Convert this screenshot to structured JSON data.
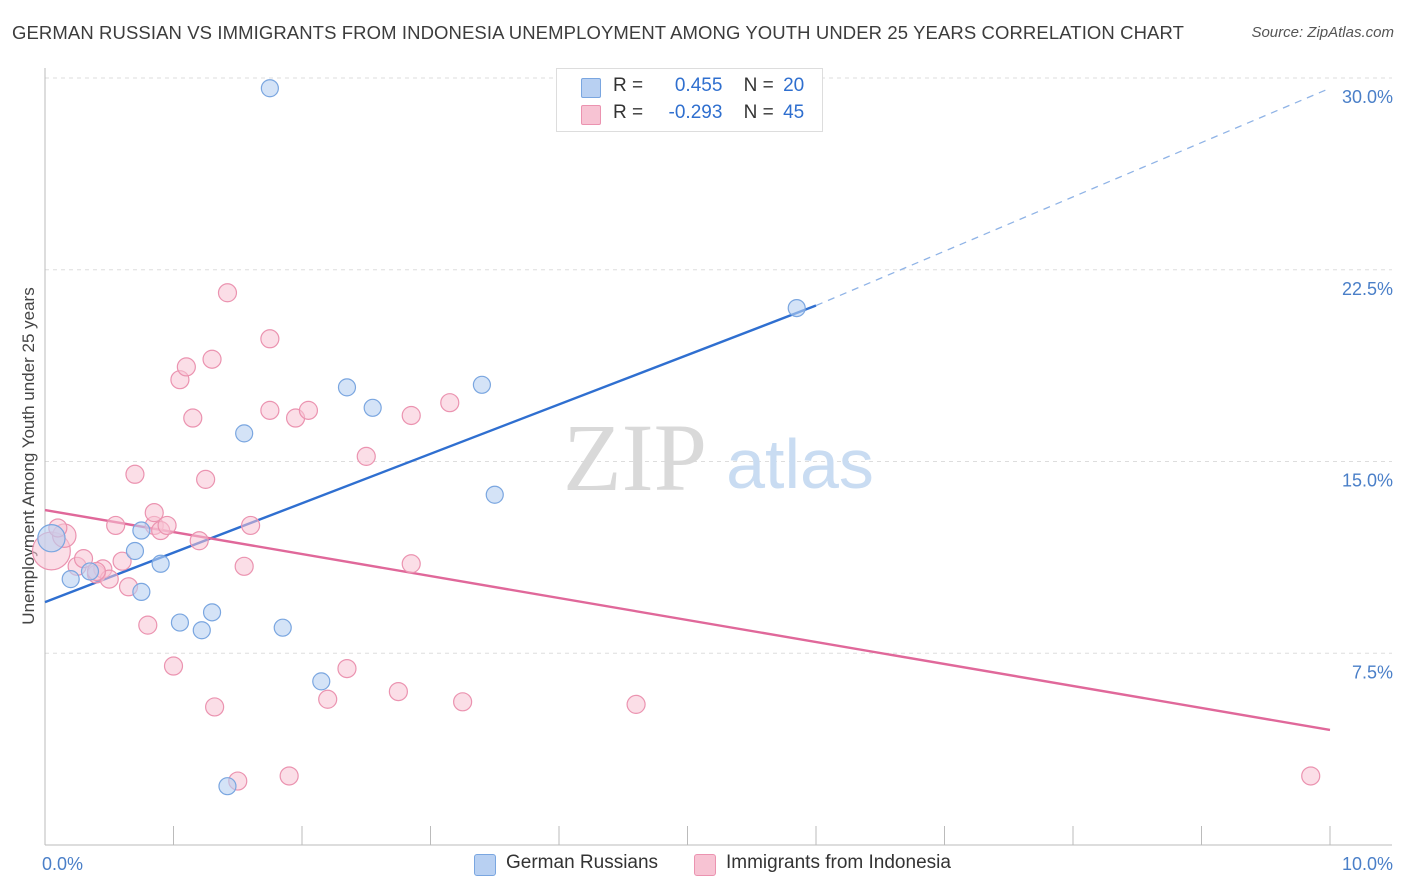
{
  "title": "GERMAN RUSSIAN VS IMMIGRANTS FROM INDONESIA UNEMPLOYMENT AMONG YOUTH UNDER 25 YEARS CORRELATION CHART",
  "source": "Source: ZipAtlas.com",
  "watermark": {
    "zip": "ZIP",
    "atlas": "atlas"
  },
  "colors": {
    "blue_fill": "#b8d0f2",
    "blue_stroke": "#7aa6e0",
    "blue_line": "#2f6fd0",
    "pink_fill": "#f7c3d3",
    "pink_stroke": "#eb93b0",
    "pink_line": "#e0689a",
    "tick_label": "#4a7fc8",
    "grid": "#dddddd"
  },
  "legend": {
    "rows": [
      {
        "r_label": "R =",
        "r_value": "0.455",
        "n_label": "N =",
        "n_value": "20",
        "color": "#b8d0f2",
        "border": "#7aa6e0"
      },
      {
        "r_label": "R =",
        "r_value": "-0.293",
        "n_label": "N =",
        "n_value": "45",
        "color": "#f7c3d3",
        "border": "#eb93b0"
      }
    ]
  },
  "bottom_legend": [
    {
      "label": "German Russians",
      "color": "#b8d0f2",
      "border": "#7aa6e0"
    },
    {
      "label": "Immigrants from Indonesia",
      "color": "#f7c3d3",
      "border": "#eb93b0"
    }
  ],
  "chart_data": {
    "type": "scatter",
    "title": "GERMAN RUSSIAN VS IMMIGRANTS FROM INDONESIA UNEMPLOYMENT AMONG YOUTH UNDER 25 YEARS CORRELATION CHART",
    "xlabel": "",
    "ylabel": "Unemployment Among Youth under 25 years",
    "xlim": [
      0,
      10
    ],
    "ylim": [
      0,
      30
    ],
    "x_tick_labels": [
      {
        "value": 0,
        "label": "0.0%"
      },
      {
        "value": 10,
        "label": "10.0%"
      }
    ],
    "x_minor_ticks": [
      1,
      2,
      3,
      4,
      5,
      6,
      7,
      8,
      9,
      10
    ],
    "y_ticks": [
      {
        "value": 7.5,
        "label": "7.5%"
      },
      {
        "value": 15,
        "label": "15.0%"
      },
      {
        "value": 22.5,
        "label": "22.5%"
      },
      {
        "value": 30,
        "label": "30.0%"
      }
    ],
    "series": [
      {
        "name": "German Russians",
        "r": 0.455,
        "n": 20,
        "trend": {
          "x0": 0,
          "y0": 9.5,
          "x1": 6.0,
          "y1": 21.1,
          "dash_to_x": 10,
          "dash_to_y": 29.6
        },
        "points": [
          {
            "x": 1.75,
            "y": 29.6,
            "s": 1
          },
          {
            "x": 0.05,
            "y": 12.0,
            "s": 1.6
          },
          {
            "x": 0.2,
            "y": 10.4,
            "s": 1
          },
          {
            "x": 0.35,
            "y": 10.7,
            "s": 1
          },
          {
            "x": 0.7,
            "y": 11.5,
            "s": 1
          },
          {
            "x": 0.75,
            "y": 9.9,
            "s": 1
          },
          {
            "x": 0.75,
            "y": 12.3,
            "s": 1
          },
          {
            "x": 0.9,
            "y": 11.0,
            "s": 1
          },
          {
            "x": 1.05,
            "y": 8.7,
            "s": 1
          },
          {
            "x": 1.22,
            "y": 8.4,
            "s": 1
          },
          {
            "x": 1.3,
            "y": 9.1,
            "s": 1
          },
          {
            "x": 1.55,
            "y": 16.1,
            "s": 1
          },
          {
            "x": 1.85,
            "y": 8.5,
            "s": 1
          },
          {
            "x": 2.35,
            "y": 17.9,
            "s": 1
          },
          {
            "x": 2.55,
            "y": 17.1,
            "s": 1
          },
          {
            "x": 2.15,
            "y": 6.4,
            "s": 1
          },
          {
            "x": 1.42,
            "y": 2.3,
            "s": 1
          },
          {
            "x": 3.4,
            "y": 18.0,
            "s": 1
          },
          {
            "x": 3.5,
            "y": 13.7,
            "s": 1
          },
          {
            "x": 5.85,
            "y": 21.0,
            "s": 1
          }
        ]
      },
      {
        "name": "Immigrants from Indonesia",
        "r": -0.293,
        "n": 45,
        "trend": {
          "x0": 0,
          "y0": 13.1,
          "x1": 10,
          "y1": 4.5
        },
        "points": [
          {
            "x": 0.05,
            "y": 11.5,
            "s": 2.1
          },
          {
            "x": 0.15,
            "y": 12.1,
            "s": 1.3
          },
          {
            "x": 0.25,
            "y": 10.9,
            "s": 1
          },
          {
            "x": 0.3,
            "y": 11.2,
            "s": 1
          },
          {
            "x": 0.4,
            "y": 10.6,
            "s": 1
          },
          {
            "x": 0.45,
            "y": 10.8,
            "s": 1
          },
          {
            "x": 0.5,
            "y": 10.4,
            "s": 1
          },
          {
            "x": 0.55,
            "y": 12.5,
            "s": 1
          },
          {
            "x": 0.6,
            "y": 11.1,
            "s": 1
          },
          {
            "x": 0.65,
            "y": 10.1,
            "s": 1
          },
          {
            "x": 0.7,
            "y": 14.5,
            "s": 1
          },
          {
            "x": 0.85,
            "y": 12.5,
            "s": 1
          },
          {
            "x": 0.85,
            "y": 13.0,
            "s": 1
          },
          {
            "x": 0.9,
            "y": 12.3,
            "s": 1
          },
          {
            "x": 0.95,
            "y": 12.5,
            "s": 1
          },
          {
            "x": 1.0,
            "y": 7.0,
            "s": 1
          },
          {
            "x": 0.8,
            "y": 8.6,
            "s": 1
          },
          {
            "x": 1.05,
            "y": 18.2,
            "s": 1
          },
          {
            "x": 1.1,
            "y": 18.7,
            "s": 1
          },
          {
            "x": 1.15,
            "y": 16.7,
            "s": 1
          },
          {
            "x": 1.2,
            "y": 11.9,
            "s": 1
          },
          {
            "x": 1.25,
            "y": 14.3,
            "s": 1
          },
          {
            "x": 1.3,
            "y": 19.0,
            "s": 1
          },
          {
            "x": 1.32,
            "y": 5.4,
            "s": 1
          },
          {
            "x": 1.42,
            "y": 21.6,
            "s": 1
          },
          {
            "x": 1.5,
            "y": 2.5,
            "s": 1
          },
          {
            "x": 1.55,
            "y": 10.9,
            "s": 1
          },
          {
            "x": 1.6,
            "y": 12.5,
            "s": 1
          },
          {
            "x": 1.75,
            "y": 17.0,
            "s": 1
          },
          {
            "x": 1.75,
            "y": 19.8,
            "s": 1
          },
          {
            "x": 1.9,
            "y": 2.7,
            "s": 1
          },
          {
            "x": 1.95,
            "y": 16.7,
            "s": 1
          },
          {
            "x": 2.05,
            "y": 17.0,
            "s": 1
          },
          {
            "x": 2.2,
            "y": 5.7,
            "s": 1
          },
          {
            "x": 2.35,
            "y": 6.9,
            "s": 1
          },
          {
            "x": 2.5,
            "y": 15.2,
            "s": 1
          },
          {
            "x": 2.75,
            "y": 6.0,
            "s": 1
          },
          {
            "x": 2.85,
            "y": 11.0,
            "s": 1
          },
          {
            "x": 2.85,
            "y": 16.8,
            "s": 1
          },
          {
            "x": 3.15,
            "y": 17.3,
            "s": 1
          },
          {
            "x": 3.25,
            "y": 5.6,
            "s": 1
          },
          {
            "x": 4.6,
            "y": 5.5,
            "s": 1
          },
          {
            "x": 9.85,
            "y": 2.7,
            "s": 1
          },
          {
            "x": 0.1,
            "y": 12.4,
            "s": 1
          },
          {
            "x": 0.4,
            "y": 10.7,
            "s": 1
          }
        ]
      }
    ]
  }
}
